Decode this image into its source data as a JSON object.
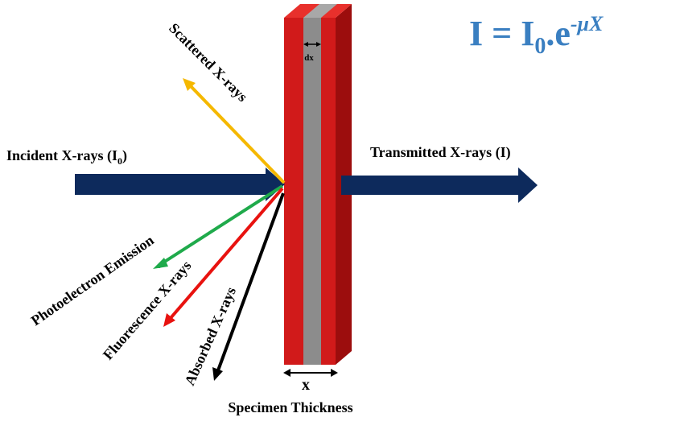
{
  "formula": {
    "lhs": "I",
    "eq": " = ",
    "base": "I",
    "base_sub": "0",
    "dot_e": ".e",
    "exponent": "-μX",
    "color": "#3a7fc1"
  },
  "labels": {
    "incident": "Incident X-rays (I",
    "incident_sub": "0",
    "incident_close": ")",
    "transmitted": "Transmitted X-rays (I)",
    "scattered": "Scattered X-rays",
    "photoelectron": "Photoelectron Emission",
    "fluorescence": "Fluorescence X-rays",
    "absorbed": "Absorbed X-rays",
    "thickness_symbol": "x",
    "layer_symbol": "dx",
    "specimen": "Specimen Thickness"
  },
  "colors": {
    "beam": "#0d2a5c",
    "scattered": "#f5b800",
    "photoelectron": "#1faa4b",
    "fluorescence": "#e8120f",
    "absorbed": "#000000",
    "slab_front": "#d11a1a",
    "slab_side": "#9c0d0d",
    "slab_top": "#e8302c",
    "layer": "#8c8c8c",
    "layer_top": "#a8a8a8"
  }
}
